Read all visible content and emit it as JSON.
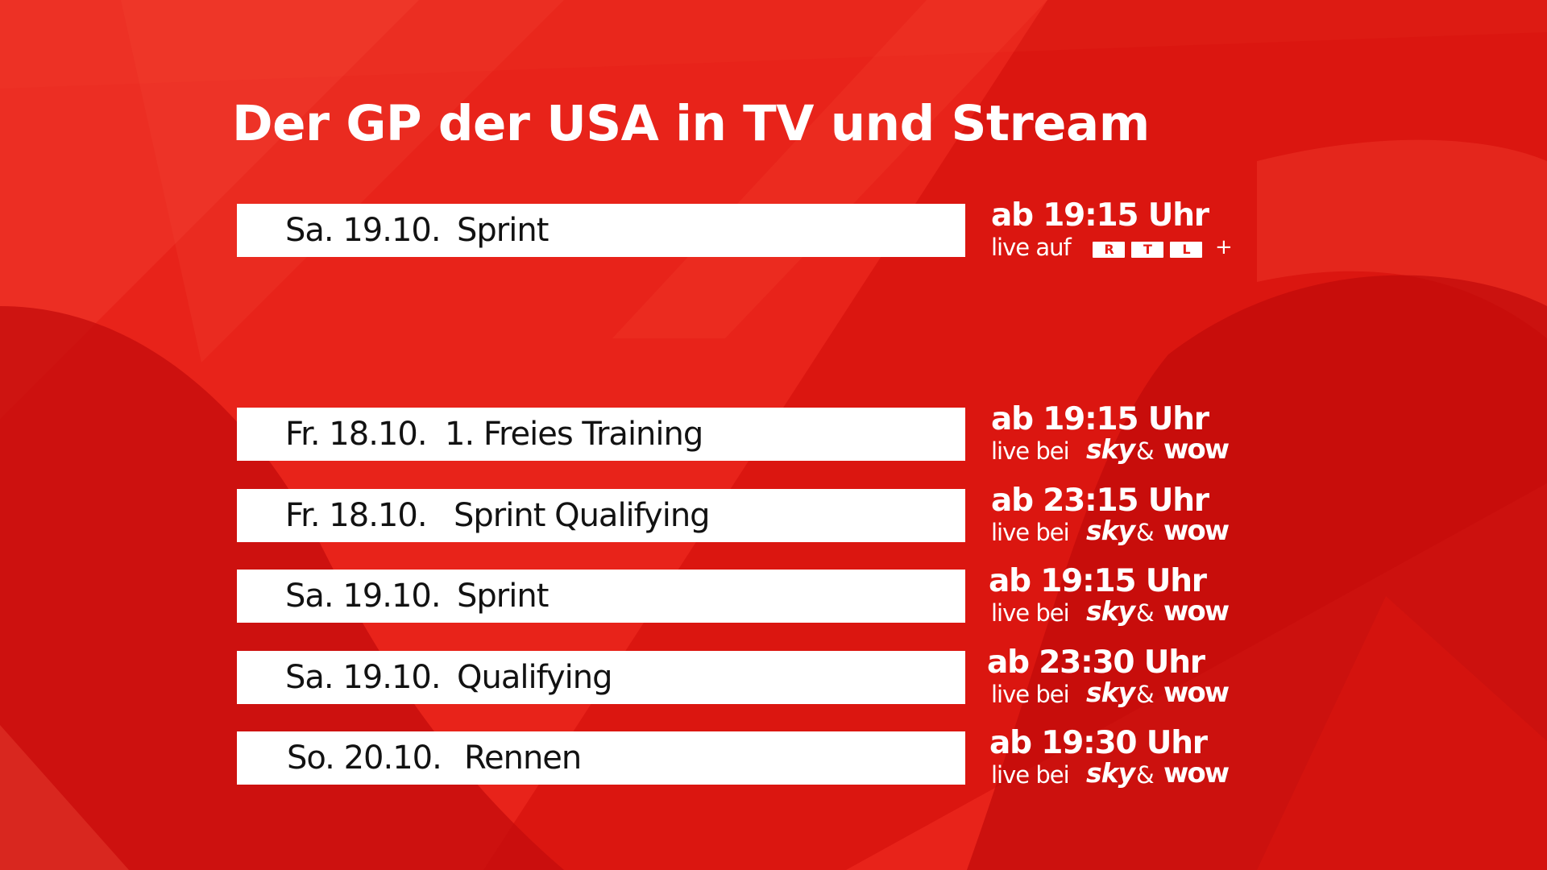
{
  "title": "Der GP der USA in TV und Stream",
  "rows": [
    {
      "date": "Sa. 19.10.",
      "event": "Sprint",
      "time": "ab 19:15 Uhr",
      "channel_prefix": "live auf",
      "rtl_letters": [
        "R",
        "T",
        "L"
      ],
      "rtl_plus": "+"
    },
    {
      "date": "Fr. 18.10.",
      "event": "1. Freies Training",
      "time": "ab 19:15 Uhr",
      "channel_prefix": "live bei",
      "sky": "sky",
      "amp": "&",
      "wow": "wow"
    },
    {
      "date": "Fr. 18.10.",
      "event": "Sprint Qualifying",
      "time": "ab 23:15 Uhr",
      "channel_prefix": "live bei",
      "sky": "sky",
      "amp": "&",
      "wow": "wow"
    },
    {
      "date": "Sa. 19.10.",
      "event": "Sprint",
      "time": "ab 19:15 Uhr",
      "channel_prefix": "live bei",
      "sky": "sky",
      "amp": "&",
      "wow": "wow"
    },
    {
      "date": "Sa. 19.10.",
      "event": "Qualifying",
      "time": "ab 23:30 Uhr",
      "channel_prefix": "live bei",
      "sky": "sky",
      "amp": "&",
      "wow": "wow"
    },
    {
      "date": "So. 20.10.",
      "event": "Rennen",
      "time": "ab 19:30 Uhr",
      "channel_prefix": "live bei",
      "sky": "sky",
      "amp": "&",
      "wow": "wow"
    }
  ],
  "colors": {
    "background": "#e31b14",
    "background_dark": "#c80d0d",
    "bar": "#ffffff",
    "bar_text": "#121212",
    "text": "#ffffff"
  },
  "icons": {
    "rtl_plus_logo": "rtl-plus-logo",
    "sky_logo": "sky-logo",
    "wow_logo": "wow-logo"
  }
}
